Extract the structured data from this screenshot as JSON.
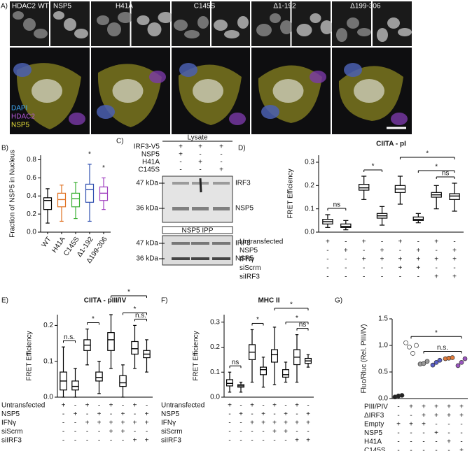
{
  "panel_a": {
    "label": "A)",
    "columns": [
      "WT",
      "H41A",
      "C145S",
      "Δ1-192",
      "Δ199-306"
    ],
    "channels": [
      "HDAC2",
      "NSP5"
    ],
    "legend": [
      {
        "text": "DAPI",
        "color": "#3fa9f5"
      },
      {
        "text": "HDAC2",
        "color": "#b458d8"
      },
      {
        "text": "NSP5",
        "color": "#e8e03a"
      }
    ]
  },
  "panel_c": {
    "label": "C)",
    "lysate": "Lysate",
    "conditions": [
      {
        "label": "IRF3-V5",
        "marks": [
          "+",
          "+",
          "+"
        ]
      },
      {
        "label": "NSP5",
        "marks": [
          "+",
          "-",
          "-"
        ]
      },
      {
        "label": "H41A",
        "marks": [
          "-",
          "+",
          "-"
        ]
      },
      {
        "label": "C145S",
        "marks": [
          "-",
          "-",
          "+"
        ]
      }
    ],
    "markers": [
      "47 kDa",
      "36 kDa"
    ],
    "bands": [
      "IRF3",
      "NSP5"
    ],
    "ipp": "NSP5 IPP",
    "ipp_markers": [
      "47 kDa",
      "36 kDa"
    ],
    "ipp_bands": [
      "IRF3",
      "NSP5"
    ]
  },
  "chart_data": [
    {
      "type": "box",
      "panel": "B)",
      "ylabel": "Fraction of NSP5 in Nucleus",
      "categories": [
        "WT",
        "H41A",
        "C145S",
        "Δ1-192",
        "Δ199-306"
      ],
      "colors": [
        "#000000",
        "#e07020",
        "#3cb034",
        "#3050b0",
        "#a040c0"
      ],
      "boxes": [
        {
          "min": 0.1,
          "q1": 0.25,
          "median": 0.35,
          "q3": 0.38,
          "max": 0.48
        },
        {
          "min": 0.12,
          "q1": 0.28,
          "median": 0.36,
          "q3": 0.43,
          "max": 0.52
        },
        {
          "min": 0.15,
          "q1": 0.28,
          "median": 0.37,
          "q3": 0.43,
          "max": 0.55
        },
        {
          "min": 0.12,
          "q1": 0.33,
          "median": 0.47,
          "q3": 0.53,
          "max": 0.75
        },
        {
          "min": 0.25,
          "q1": 0.35,
          "median": 0.43,
          "q3": 0.5,
          "max": 0.6
        }
      ],
      "ylim": [
        0,
        0.85
      ],
      "yticks": [
        {
          "value": 0,
          "label": "0.0"
        },
        0.2,
        0.4,
        0.6,
        0.8
      ],
      "annotations": [
        "*",
        "*"
      ]
    },
    {
      "type": "box",
      "panel": "D)",
      "title": "CIITA - pI",
      "ylabel": "FRET Efficiency",
      "color": "#000000",
      "boxes": [
        {
          "min": 0.02,
          "q1": 0.035,
          "median": 0.045,
          "q3": 0.055,
          "max": 0.075
        },
        {
          "min": 0.01,
          "q1": 0.02,
          "median": 0.025,
          "q3": 0.035,
          "max": 0.05
        },
        {
          "min": 0.14,
          "q1": 0.18,
          "median": 0.19,
          "q3": 0.205,
          "max": 0.24
        },
        {
          "min": 0.03,
          "q1": 0.06,
          "median": 0.07,
          "q3": 0.08,
          "max": 0.11
        },
        {
          "min": 0.12,
          "q1": 0.17,
          "median": 0.185,
          "q3": 0.2,
          "max": 0.24
        },
        {
          "min": 0.04,
          "q1": 0.05,
          "median": 0.055,
          "q3": 0.065,
          "max": 0.08
        },
        {
          "min": 0.1,
          "q1": 0.15,
          "median": 0.16,
          "q3": 0.17,
          "max": 0.2
        },
        {
          "min": 0.09,
          "q1": 0.14,
          "median": 0.155,
          "q3": 0.165,
          "max": 0.21
        }
      ],
      "ylim": [
        0,
        0.33
      ],
      "yticks": [
        {
          "value": 0,
          "label": "0.0"
        },
        0.1,
        0.2,
        0.3
      ],
      "annotations": [
        "ns",
        "*",
        "*",
        "*",
        "ns"
      ],
      "conditions": [
        {
          "label": "Untransfected",
          "marks": [
            "+",
            "-",
            "+",
            "-",
            "+",
            "-",
            "+",
            "-"
          ]
        },
        {
          "label": "NSP5",
          "marks": [
            "-",
            "+",
            "-",
            "+",
            "-",
            "+",
            "-",
            "+"
          ]
        },
        {
          "label": "IFNγ",
          "marks": [
            "-",
            "-",
            "+",
            "+",
            "+",
            "+",
            "+",
            "+"
          ]
        },
        {
          "label": "siScrm",
          "marks": [
            "-",
            "-",
            "-",
            "-",
            "+",
            "+",
            "-",
            "-"
          ]
        },
        {
          "label": "siIRF3",
          "marks": [
            "-",
            "-",
            "-",
            "-",
            "-",
            "-",
            "+",
            "+"
          ]
        }
      ]
    },
    {
      "type": "box",
      "panel": "E)",
      "title": "CIITA - pIII/IV",
      "ylabel": "FRET Efficiency",
      "color": "#000000",
      "boxes": [
        {
          "min": 0,
          "q1": 0.02,
          "median": 0.045,
          "q3": 0.07,
          "max": 0.14
        },
        {
          "min": 0,
          "q1": 0.02,
          "median": 0.03,
          "q3": 0.045,
          "max": 0.08
        },
        {
          "min": 0.09,
          "q1": 0.13,
          "median": 0.145,
          "q3": 0.16,
          "max": 0.19
        },
        {
          "min": 0.01,
          "q1": 0.045,
          "median": 0.055,
          "q3": 0.07,
          "max": 0.1
        },
        {
          "min": 0.08,
          "q1": 0.13,
          "median": 0.16,
          "q3": 0.18,
          "max": 0.23
        },
        {
          "min": 0,
          "q1": 0.03,
          "median": 0.04,
          "q3": 0.06,
          "max": 0.09
        },
        {
          "min": 0.08,
          "q1": 0.12,
          "median": 0.135,
          "q3": 0.155,
          "max": 0.2
        },
        {
          "min": 0.07,
          "q1": 0.11,
          "median": 0.12,
          "q3": 0.13,
          "max": 0.16
        }
      ],
      "ylim": [
        0,
        0.23
      ],
      "yticks": [
        {
          "value": 0,
          "label": "0.0"
        },
        0.1,
        0.2
      ],
      "annotations": [
        "n.s.",
        "*",
        "*",
        "*",
        "n.s."
      ],
      "conditions": [
        {
          "label": "Untransfected",
          "marks": [
            "+",
            "-",
            "+",
            "-",
            "+",
            "-",
            "+",
            "-"
          ]
        },
        {
          "label": "NSP5",
          "marks": [
            "-",
            "+",
            "-",
            "+",
            "-",
            "+",
            "-",
            "+"
          ]
        },
        {
          "label": "IFNγ",
          "marks": [
            "-",
            "-",
            "+",
            "+",
            "+",
            "+",
            "+",
            "+"
          ]
        },
        {
          "label": "siScrm",
          "marks": [
            "-",
            "-",
            "-",
            "-",
            "+",
            "+",
            "-",
            "-"
          ]
        },
        {
          "label": "siIRF3",
          "marks": [
            "-",
            "-",
            "-",
            "-",
            "-",
            "-",
            "+",
            "+"
          ]
        }
      ]
    },
    {
      "type": "box",
      "panel": "F)",
      "title": "MHC II",
      "ylabel": "FRET Efficiency",
      "color": "#000000",
      "boxes": [
        {
          "min": 0.02,
          "q1": 0.045,
          "median": 0.055,
          "q3": 0.07,
          "max": 0.1
        },
        {
          "min": 0.02,
          "q1": 0.04,
          "median": 0.045,
          "q3": 0.05,
          "max": 0.06
        },
        {
          "min": 0.06,
          "q1": 0.15,
          "median": 0.18,
          "q3": 0.21,
          "max": 0.27
        },
        {
          "min": 0.04,
          "q1": 0.09,
          "median": 0.11,
          "q3": 0.12,
          "max": 0.16
        },
        {
          "min": 0.05,
          "q1": 0.14,
          "median": 0.17,
          "q3": 0.19,
          "max": 0.28
        },
        {
          "min": 0.06,
          "q1": 0.08,
          "median": 0.09,
          "q3": 0.11,
          "max": 0.14
        },
        {
          "min": 0.06,
          "q1": 0.13,
          "median": 0.16,
          "q3": 0.19,
          "max": 0.25
        },
        {
          "min": 0.12,
          "q1": 0.135,
          "median": 0.145,
          "q3": 0.155,
          "max": 0.17
        }
      ],
      "ylim": [
        0,
        0.33
      ],
      "yticks": [
        {
          "value": 0,
          "label": "0.0"
        },
        0.1,
        0.2,
        0.3
      ],
      "annotations": [
        "ns",
        "*",
        "*",
        "*",
        "ns"
      ],
      "conditions": [
        {
          "label": "Untransfected",
          "marks": [
            "+",
            "-",
            "+",
            "-",
            "+",
            "-",
            "+",
            "-"
          ]
        },
        {
          "label": "NSP5",
          "marks": [
            "-",
            "+",
            "-",
            "+",
            "-",
            "+",
            "-",
            "+"
          ]
        },
        {
          "label": "IFNγ",
          "marks": [
            "-",
            "-",
            "+",
            "+",
            "+",
            "+",
            "+",
            "+"
          ]
        },
        {
          "label": "siScrm",
          "marks": [
            "-",
            "-",
            "-",
            "-",
            "+",
            "+",
            "-",
            "-"
          ]
        },
        {
          "label": "siIRF3",
          "marks": [
            "-",
            "-",
            "-",
            "-",
            "-",
            "-",
            "+",
            "+"
          ]
        }
      ]
    },
    {
      "type": "strip",
      "panel": "G)",
      "ylabel": "Fluc/Rluc (Rel. PIII/IV)",
      "series": [
        {
          "color": "#222222",
          "values": [
            0.03,
            0.05,
            0.06
          ]
        },
        {
          "color": "#ffffff",
          "values": [
            1.05,
            0.97,
            0.85,
            1.0
          ]
        },
        {
          "color": "#999999",
          "values": [
            0.65,
            0.66,
            0.7
          ]
        },
        {
          "color": "#5a5fc8",
          "values": [
            0.63,
            0.68,
            0.72
          ]
        },
        {
          "color": "#e07a3a",
          "values": [
            0.75,
            0.76,
            0.77
          ]
        },
        {
          "color": "#9b55c0",
          "values": [
            0.62,
            0.68,
            0.75
          ]
        }
      ],
      "ylim": [
        0,
        1.5
      ],
      "yticks": [
        {
          "value": 0,
          "label": "0.0"
        },
        0.5,
        {
          "value": 1,
          "label": "1.0"
        },
        1.5
      ],
      "annotations": [
        "*",
        "n.s."
      ],
      "conditions": [
        {
          "label": "PIII/PIV",
          "marks": [
            "-",
            "+",
            "+",
            "+",
            "+",
            "+"
          ]
        },
        {
          "label": "ΔIRF3",
          "marks": [
            "-",
            "-",
            "+",
            "+",
            "+",
            "+"
          ]
        },
        {
          "label": "Empty",
          "marks": [
            "+",
            "+",
            "+",
            "-",
            "-",
            "-"
          ]
        },
        {
          "label": "NSP5",
          "marks": [
            "-",
            "-",
            "-",
            "+",
            "-",
            "-"
          ]
        },
        {
          "label": "H41A",
          "marks": [
            "-",
            "-",
            "-",
            "-",
            "+",
            "-"
          ]
        },
        {
          "label": "C145S",
          "marks": [
            "-",
            "-",
            "-",
            "-",
            "-",
            "+"
          ]
        }
      ]
    }
  ]
}
